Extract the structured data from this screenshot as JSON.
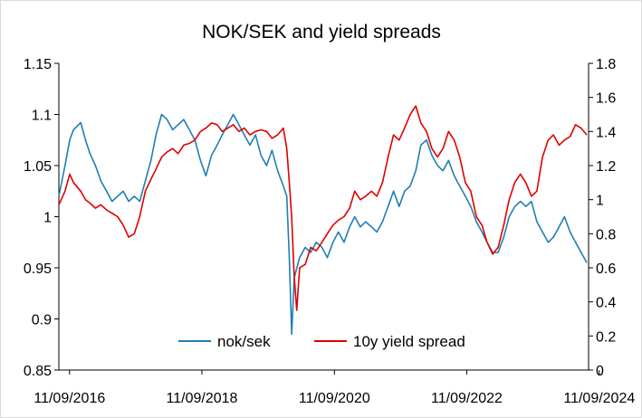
{
  "chart_data": {
    "type": "line",
    "title": "NOK/SEK and yield spreads",
    "xlabel": "",
    "ylabel": "",
    "y2label": "",
    "xlim": [
      "2016-09-11",
      "2024-09-11"
    ],
    "x_ticks": [
      "11/09/2016",
      "11/09/2018",
      "11/09/2020",
      "11/09/2022",
      "11/09/2024"
    ],
    "ylim": [
      0.85,
      1.15
    ],
    "y_ticks": [
      "0.85",
      "0.9",
      "0.95",
      "1",
      "1.05",
      "1.1",
      "1.15"
    ],
    "y2lim": [
      0,
      1.8
    ],
    "y2_ticks": [
      "0",
      "0.2",
      "0.4",
      "0.6",
      "0.8",
      "1",
      "1.2",
      "1.4",
      "1.6",
      "1.8"
    ],
    "grid": false,
    "legend_position": "bottom-center",
    "series": [
      {
        "name": "nok/sek",
        "axis": "left",
        "color": "#1f7fb4",
        "points": [
          [
            "2016-09-11",
            1.02
          ],
          [
            "2016-10-15",
            1.05
          ],
          [
            "2016-11-10",
            1.075
          ],
          [
            "2016-12-01",
            1.085
          ],
          [
            "2017-01-10",
            1.092
          ],
          [
            "2017-02-05",
            1.075
          ],
          [
            "2017-03-01",
            1.062
          ],
          [
            "2017-04-01",
            1.05
          ],
          [
            "2017-05-01",
            1.035
          ],
          [
            "2017-06-01",
            1.025
          ],
          [
            "2017-07-01",
            1.015
          ],
          [
            "2017-08-01",
            1.02
          ],
          [
            "2017-09-01",
            1.025
          ],
          [
            "2017-10-01",
            1.015
          ],
          [
            "2017-11-01",
            1.02
          ],
          [
            "2017-12-01",
            1.015
          ],
          [
            "2018-01-01",
            1.035
          ],
          [
            "2018-02-01",
            1.055
          ],
          [
            "2018-03-01",
            1.08
          ],
          [
            "2018-04-01",
            1.1
          ],
          [
            "2018-05-01",
            1.095
          ],
          [
            "2018-06-01",
            1.085
          ],
          [
            "2018-07-01",
            1.09
          ],
          [
            "2018-08-01",
            1.095
          ],
          [
            "2018-09-01",
            1.085
          ],
          [
            "2018-10-01",
            1.075
          ],
          [
            "2018-11-01",
            1.055
          ],
          [
            "2018-12-01",
            1.04
          ],
          [
            "2019-01-01",
            1.06
          ],
          [
            "2019-02-01",
            1.07
          ],
          [
            "2019-03-01",
            1.08
          ],
          [
            "2019-04-01",
            1.09
          ],
          [
            "2019-05-01",
            1.1
          ],
          [
            "2019-06-01",
            1.09
          ],
          [
            "2019-07-01",
            1.08
          ],
          [
            "2019-08-01",
            1.07
          ],
          [
            "2019-09-01",
            1.08
          ],
          [
            "2019-10-01",
            1.06
          ],
          [
            "2019-11-01",
            1.05
          ],
          [
            "2019-12-01",
            1.065
          ],
          [
            "2020-01-01",
            1.045
          ],
          [
            "2020-02-01",
            1.03
          ],
          [
            "2020-02-20",
            1.02
          ],
          [
            "2020-03-05",
            0.96
          ],
          [
            "2020-03-18",
            0.885
          ],
          [
            "2020-04-01",
            0.94
          ],
          [
            "2020-05-01",
            0.96
          ],
          [
            "2020-06-01",
            0.97
          ],
          [
            "2020-07-01",
            0.965
          ],
          [
            "2020-08-01",
            0.975
          ],
          [
            "2020-09-01",
            0.97
          ],
          [
            "2020-10-01",
            0.96
          ],
          [
            "2020-11-01",
            0.975
          ],
          [
            "2020-12-01",
            0.985
          ],
          [
            "2021-01-01",
            0.975
          ],
          [
            "2021-02-01",
            0.99
          ],
          [
            "2021-03-01",
            1.0
          ],
          [
            "2021-04-01",
            0.99
          ],
          [
            "2021-05-01",
            0.995
          ],
          [
            "2021-06-01",
            0.99
          ],
          [
            "2021-07-01",
            0.985
          ],
          [
            "2021-08-01",
            0.995
          ],
          [
            "2021-09-01",
            1.01
          ],
          [
            "2021-10-01",
            1.025
          ],
          [
            "2021-11-01",
            1.01
          ],
          [
            "2021-12-01",
            1.025
          ],
          [
            "2022-01-01",
            1.03
          ],
          [
            "2022-02-01",
            1.045
          ],
          [
            "2022-03-01",
            1.07
          ],
          [
            "2022-04-01",
            1.075
          ],
          [
            "2022-05-01",
            1.06
          ],
          [
            "2022-06-01",
            1.05
          ],
          [
            "2022-07-01",
            1.045
          ],
          [
            "2022-08-01",
            1.055
          ],
          [
            "2022-09-01",
            1.04
          ],
          [
            "2022-10-01",
            1.03
          ],
          [
            "2022-11-01",
            1.02
          ],
          [
            "2022-12-01",
            1.01
          ],
          [
            "2023-01-01",
            0.995
          ],
          [
            "2023-02-01",
            0.985
          ],
          [
            "2023-03-01",
            0.975
          ],
          [
            "2023-04-01",
            0.965
          ],
          [
            "2023-05-01",
            0.965
          ],
          [
            "2023-06-01",
            0.98
          ],
          [
            "2023-07-01",
            1.0
          ],
          [
            "2023-08-01",
            1.01
          ],
          [
            "2023-09-01",
            1.015
          ],
          [
            "2023-10-01",
            1.01
          ],
          [
            "2023-11-01",
            1.015
          ],
          [
            "2023-12-01",
            0.995
          ],
          [
            "2024-01-01",
            0.985
          ],
          [
            "2024-02-01",
            0.975
          ],
          [
            "2024-03-01",
            0.98
          ],
          [
            "2024-04-01",
            0.99
          ],
          [
            "2024-05-01",
            1.0
          ],
          [
            "2024-06-01",
            0.985
          ],
          [
            "2024-07-01",
            0.975
          ],
          [
            "2024-08-01",
            0.965
          ],
          [
            "2024-09-01",
            0.955
          ]
        ]
      },
      {
        "name": "10y yield spread",
        "axis": "right",
        "color": "#e00000",
        "points": [
          [
            "2016-09-11",
            0.97
          ],
          [
            "2016-10-15",
            1.05
          ],
          [
            "2016-11-10",
            1.15
          ],
          [
            "2016-12-01",
            1.1
          ],
          [
            "2017-01-10",
            1.05
          ],
          [
            "2017-02-05",
            1.0
          ],
          [
            "2017-03-01",
            0.98
          ],
          [
            "2017-04-01",
            0.95
          ],
          [
            "2017-05-01",
            0.97
          ],
          [
            "2017-06-01",
            0.94
          ],
          [
            "2017-07-01",
            0.92
          ],
          [
            "2017-08-01",
            0.9
          ],
          [
            "2017-09-01",
            0.85
          ],
          [
            "2017-10-01",
            0.78
          ],
          [
            "2017-11-01",
            0.8
          ],
          [
            "2017-12-01",
            0.9
          ],
          [
            "2018-01-01",
            1.05
          ],
          [
            "2018-02-01",
            1.12
          ],
          [
            "2018-03-01",
            1.18
          ],
          [
            "2018-04-01",
            1.25
          ],
          [
            "2018-05-01",
            1.28
          ],
          [
            "2018-06-01",
            1.3
          ],
          [
            "2018-07-01",
            1.27
          ],
          [
            "2018-08-01",
            1.32
          ],
          [
            "2018-09-01",
            1.33
          ],
          [
            "2018-10-01",
            1.35
          ],
          [
            "2018-11-01",
            1.4
          ],
          [
            "2018-12-01",
            1.42
          ],
          [
            "2019-01-01",
            1.45
          ],
          [
            "2019-02-01",
            1.44
          ],
          [
            "2019-03-01",
            1.4
          ],
          [
            "2019-04-01",
            1.42
          ],
          [
            "2019-05-01",
            1.44
          ],
          [
            "2019-06-01",
            1.4
          ],
          [
            "2019-07-01",
            1.42
          ],
          [
            "2019-08-01",
            1.38
          ],
          [
            "2019-09-01",
            1.4
          ],
          [
            "2019-10-01",
            1.41
          ],
          [
            "2019-11-01",
            1.4
          ],
          [
            "2019-12-01",
            1.36
          ],
          [
            "2020-01-01",
            1.38
          ],
          [
            "2020-02-01",
            1.42
          ],
          [
            "2020-02-20",
            1.3
          ],
          [
            "2020-03-05",
            1.1
          ],
          [
            "2020-03-18",
            0.9
          ],
          [
            "2020-04-01",
            0.55
          ],
          [
            "2020-04-15",
            0.35
          ],
          [
            "2020-05-01",
            0.6
          ],
          [
            "2020-06-01",
            0.62
          ],
          [
            "2020-07-01",
            0.72
          ],
          [
            "2020-08-01",
            0.7
          ],
          [
            "2020-09-01",
            0.75
          ],
          [
            "2020-10-01",
            0.8
          ],
          [
            "2020-11-01",
            0.85
          ],
          [
            "2020-12-01",
            0.88
          ],
          [
            "2021-01-01",
            0.9
          ],
          [
            "2021-02-01",
            0.95
          ],
          [
            "2021-03-01",
            1.05
          ],
          [
            "2021-04-01",
            1.0
          ],
          [
            "2021-05-01",
            1.02
          ],
          [
            "2021-06-01",
            1.05
          ],
          [
            "2021-07-01",
            1.02
          ],
          [
            "2021-08-01",
            1.1
          ],
          [
            "2021-09-01",
            1.25
          ],
          [
            "2021-10-01",
            1.38
          ],
          [
            "2021-11-01",
            1.35
          ],
          [
            "2021-12-01",
            1.42
          ],
          [
            "2022-01-01",
            1.5
          ],
          [
            "2022-02-01",
            1.55
          ],
          [
            "2022-03-01",
            1.45
          ],
          [
            "2022-04-01",
            1.4
          ],
          [
            "2022-05-01",
            1.3
          ],
          [
            "2022-06-01",
            1.25
          ],
          [
            "2022-07-01",
            1.3
          ],
          [
            "2022-08-01",
            1.4
          ],
          [
            "2022-09-01",
            1.35
          ],
          [
            "2022-10-01",
            1.25
          ],
          [
            "2022-11-01",
            1.1
          ],
          [
            "2022-12-01",
            1.05
          ],
          [
            "2023-01-01",
            0.9
          ],
          [
            "2023-02-01",
            0.85
          ],
          [
            "2023-03-01",
            0.75
          ],
          [
            "2023-04-01",
            0.68
          ],
          [
            "2023-05-01",
            0.72
          ],
          [
            "2023-06-01",
            0.85
          ],
          [
            "2023-07-01",
            1.0
          ],
          [
            "2023-08-01",
            1.1
          ],
          [
            "2023-09-01",
            1.15
          ],
          [
            "2023-10-01",
            1.1
          ],
          [
            "2023-11-01",
            1.02
          ],
          [
            "2023-12-01",
            1.05
          ],
          [
            "2024-01-01",
            1.25
          ],
          [
            "2024-02-01",
            1.35
          ],
          [
            "2024-03-01",
            1.38
          ],
          [
            "2024-04-01",
            1.32
          ],
          [
            "2024-05-01",
            1.35
          ],
          [
            "2024-06-01",
            1.37
          ],
          [
            "2024-07-01",
            1.44
          ],
          [
            "2024-08-01",
            1.42
          ],
          [
            "2024-09-01",
            1.38
          ]
        ]
      }
    ]
  }
}
